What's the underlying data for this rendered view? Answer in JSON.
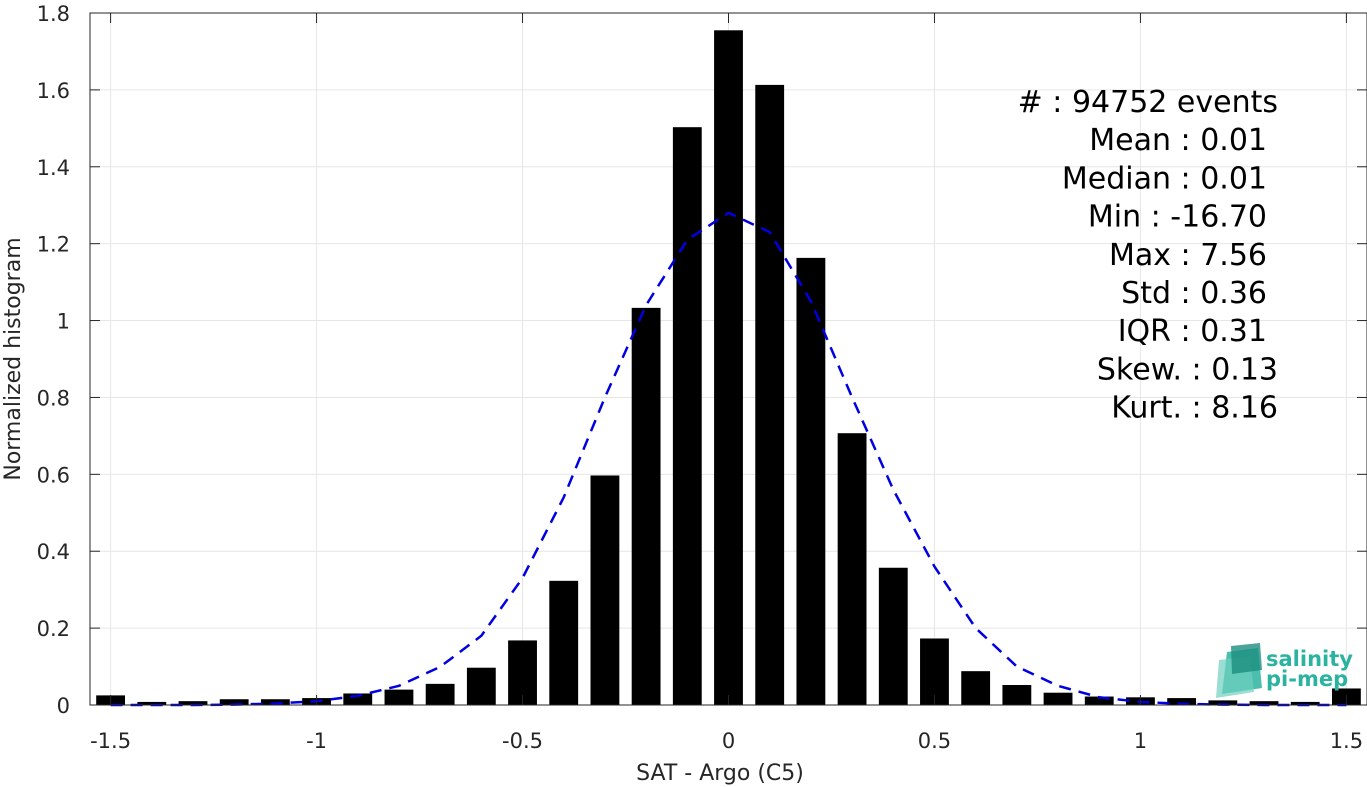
{
  "chart_data": {
    "type": "bar",
    "xlabel": "SAT - Argo (C5)",
    "ylabel": "Normalized histogram",
    "xlim": [
      -1.55,
      1.55
    ],
    "ylim": [
      0,
      1.8
    ],
    "xticks": [
      -1.5,
      -1,
      -0.5,
      0,
      0.5,
      1,
      1.5
    ],
    "xtick_labels": [
      "-1.5",
      "-1",
      "-0.5",
      "0",
      "0.5",
      "1",
      "1.5"
    ],
    "yticks": [
      0,
      0.2,
      0.4,
      0.6,
      0.8,
      1,
      1.2,
      1.4,
      1.6,
      1.8
    ],
    "ytick_labels": [
      "0",
      "0.2",
      "0.4",
      "0.6",
      "0.8",
      "1",
      "1.2",
      "1.4",
      "1.6",
      "1.8"
    ],
    "grid": true,
    "bar_color": "#000000",
    "bar_width": 0.07,
    "x": [
      -1.5,
      -1.4,
      -1.3,
      -1.2,
      -1.1,
      -1.0,
      -0.9,
      -0.8,
      -0.7,
      -0.6,
      -0.5,
      -0.4,
      -0.3,
      -0.2,
      -0.1,
      0.0,
      0.1,
      0.2,
      0.3,
      0.4,
      0.5,
      0.6,
      0.7,
      0.8,
      0.9,
      1.0,
      1.1,
      1.2,
      1.3,
      1.4,
      1.5
    ],
    "values": [
      0.025,
      0.008,
      0.01,
      0.015,
      0.015,
      0.018,
      0.03,
      0.04,
      0.055,
      0.097,
      0.168,
      0.323,
      0.597,
      1.033,
      1.503,
      1.755,
      1.613,
      1.163,
      0.707,
      0.357,
      0.173,
      0.088,
      0.052,
      0.032,
      0.022,
      0.02,
      0.018,
      0.012,
      0.01,
      0.008,
      0.043
    ],
    "fit": {
      "name": "normal fit",
      "style": "dashed",
      "color": "#0000e0",
      "x": [
        -1.5,
        -1.4,
        -1.3,
        -1.2,
        -1.1,
        -1.0,
        -0.9,
        -0.8,
        -0.7,
        -0.6,
        -0.5,
        -0.4,
        -0.3,
        -0.2,
        -0.1,
        0.0,
        0.1,
        0.2,
        0.3,
        0.4,
        0.5,
        0.6,
        0.7,
        0.8,
        0.9,
        1.0,
        1.1,
        1.2,
        1.3,
        1.4,
        1.5
      ],
      "y": [
        0.0,
        0.0,
        0.0,
        0.001,
        0.004,
        0.01,
        0.024,
        0.05,
        0.099,
        0.18,
        0.33,
        0.54,
        0.8,
        1.04,
        1.21,
        1.28,
        1.23,
        1.05,
        0.8,
        0.56,
        0.36,
        0.2,
        0.1,
        0.05,
        0.02,
        0.008,
        0.003,
        0.001,
        0.0,
        0.0,
        0.0
      ]
    },
    "annotations": [
      "#  : 94752 events",
      "Mean : 0.01",
      "Median : 0.01",
      "Min : -16.70",
      "Max : 7.56",
      "Std : 0.36",
      "IQR : 0.31",
      "Skew. : 0.13",
      "Kurt. : 8.16"
    ]
  },
  "logo": {
    "line1": "salinity",
    "line2": "pi-mep",
    "color": "#2bb3a0"
  }
}
